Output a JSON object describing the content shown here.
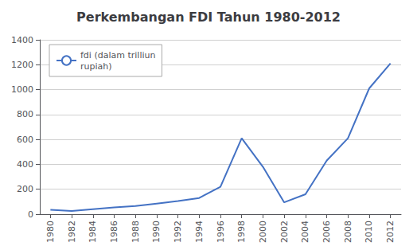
{
  "chart_data": {
    "type": "line",
    "title": "Perkembangan FDI Tahun 1980-2012",
    "x": [
      1980,
      1982,
      1984,
      1986,
      1988,
      1990,
      1992,
      1994,
      1996,
      1998,
      2000,
      2002,
      2004,
      2006,
      2008,
      2010,
      2012
    ],
    "series": [
      {
        "name": "fdi (dalam trilliun\nrupiah)",
        "color": "#4472C4",
        "values": [
          35,
          25,
          40,
          55,
          65,
          85,
          105,
          130,
          220,
          610,
          380,
          95,
          160,
          430,
          610,
          1010,
          1210
        ]
      }
    ],
    "xlim": [
      1979,
      2013
    ],
    "xticks": [
      1980,
      1982,
      1984,
      1986,
      1988,
      1990,
      1992,
      1994,
      1996,
      1998,
      2000,
      2002,
      2004,
      2006,
      2008,
      2010,
      2012
    ],
    "ylim": [
      0,
      1400
    ],
    "yticks": [
      0,
      200,
      400,
      600,
      800,
      1000,
      1200,
      1400
    ],
    "grid": "y",
    "legend": "upper left"
  }
}
